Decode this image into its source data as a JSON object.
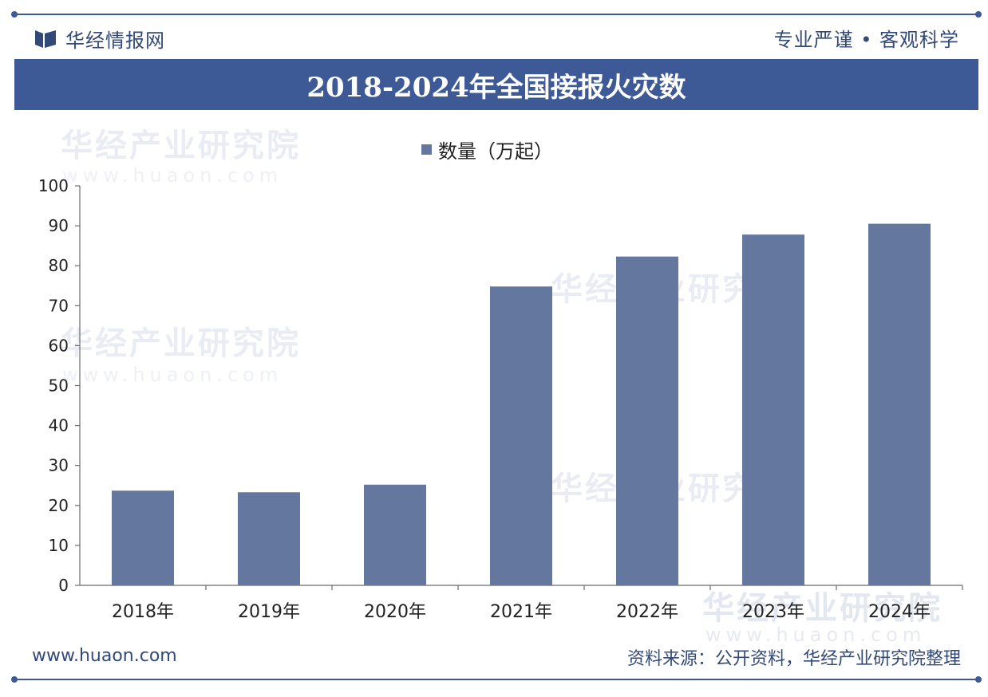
{
  "header": {
    "brand": "华经情报网",
    "slogan": "专业严谨 • 客观科学"
  },
  "chart_data": {
    "type": "bar",
    "title": "2018-2024年全国接报火灾数",
    "categories": [
      "2018年",
      "2019年",
      "2020年",
      "2021年",
      "2022年",
      "2023年",
      "2024年"
    ],
    "series": [
      {
        "name": "数量（万起）",
        "values": [
          23.7,
          23.3,
          25.2,
          74.8,
          82.3,
          87.8,
          90.5
        ],
        "color": "#64779f"
      }
    ],
    "ylim": [
      0,
      100
    ],
    "yticks": [
      0,
      10,
      20,
      30,
      40,
      50,
      60,
      70,
      80,
      90,
      100
    ],
    "grid": false,
    "legend": "top-center"
  },
  "watermark": {
    "text": "华经产业研究院",
    "url": "www.huaon.com"
  },
  "footer": {
    "url": "www.huaon.com",
    "source": "资料来源：公开资料，华经产业研究院整理"
  }
}
